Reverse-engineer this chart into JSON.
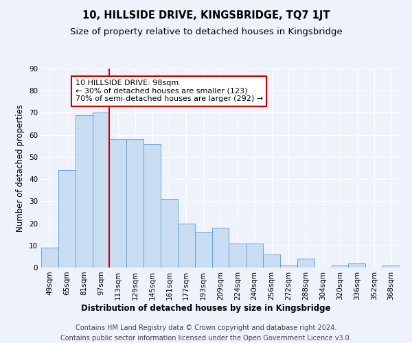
{
  "title": "10, HILLSIDE DRIVE, KINGSBRIDGE, TQ7 1JT",
  "subtitle": "Size of property relative to detached houses in Kingsbridge",
  "xlabel": "Distribution of detached houses by size in Kingsbridge",
  "ylabel": "Number of detached properties",
  "footer_line1": "Contains HM Land Registry data © Crown copyright and database right 2024.",
  "footer_line2": "Contains public sector information licensed under the Open Government Licence v3.0.",
  "categories": [
    "49sqm",
    "65sqm",
    "81sqm",
    "97sqm",
    "113sqm",
    "129sqm",
    "145sqm",
    "161sqm",
    "177sqm",
    "193sqm",
    "209sqm",
    "224sqm",
    "240sqm",
    "256sqm",
    "272sqm",
    "288sqm",
    "304sqm",
    "320sqm",
    "336sqm",
    "352sqm",
    "368sqm"
  ],
  "values": [
    9,
    44,
    69,
    70,
    58,
    58,
    56,
    31,
    20,
    16,
    18,
    11,
    11,
    6,
    1,
    4,
    0,
    1,
    2,
    0,
    1
  ],
  "bar_color": "#c8ddf2",
  "bar_edge_color": "#5b9bd5",
  "vline_color": "#cc0000",
  "annotation_text": "10 HILLSIDE DRIVE: 98sqm\n← 30% of detached houses are smaller (123)\n70% of semi-detached houses are larger (292) →",
  "annotation_box_facecolor": "#ffffff",
  "annotation_box_edgecolor": "#cc0000",
  "ylim": [
    0,
    90
  ],
  "yticks": [
    0,
    10,
    20,
    30,
    40,
    50,
    60,
    70,
    80,
    90
  ],
  "bg_color": "#eef2fa",
  "grid_color": "#ffffff",
  "title_fontsize": 10.5,
  "subtitle_fontsize": 9.5,
  "axis_label_fontsize": 8.5,
  "tick_fontsize": 7.5,
  "annotation_fontsize": 8,
  "footer_fontsize": 7
}
